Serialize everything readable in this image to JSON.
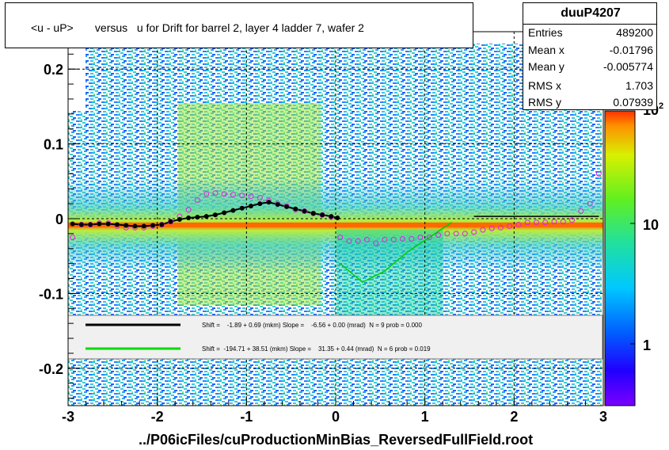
{
  "chart_data": {
    "type": "heatmap",
    "title": "<u - uP>       versus   u for Drift for barrel 2, layer 4 ladder 7, wafer 2",
    "xlabel": "../P06icFiles/cuProductionMinBias_ReversedFullField.root",
    "xlim": [
      -3,
      3
    ],
    "ylim": [
      -0.25,
      0.25
    ],
    "x_ticks": [
      "-3",
      "-2",
      "-1",
      "0",
      "1",
      "2",
      "3"
    ],
    "y_ticks": [
      "-0.2",
      "-0.1",
      "0",
      "0.1",
      "0.2"
    ],
    "z_ticks": [
      "1",
      "10",
      "10"
    ],
    "z_exponent": "2",
    "stats": {
      "name": "duuP4207",
      "rows": [
        {
          "label": "Entries",
          "value": "489200"
        },
        {
          "label": "Mean x",
          "value": "-0.01796"
        },
        {
          "label": "Mean y",
          "value": "-0.005774"
        },
        {
          "label": "RMS x",
          "value": "1.703"
        },
        {
          "label": "RMS y",
          "value": "0.07939"
        }
      ]
    },
    "legend": [
      {
        "color": "#000000",
        "text": "Shift =    -1.89 + 0.69 (mkm) Slope =    -6.56 + 0.00 (mrad)  N = 9 prob = 0.000"
      },
      {
        "color": "#00dd00",
        "text": "Shift =  -194.71 + 38.51 (mkm) Slope =    31.35 + 0.44 (mrad)  N = 6 prob = 0.019"
      }
    ],
    "profile_black": {
      "x": [
        -2.95,
        -2.85,
        -2.75,
        -2.65,
        -2.55,
        -2.45,
        -2.35,
        -2.25,
        -2.15,
        -2.05,
        -1.95,
        -1.85,
        -1.75,
        -1.65,
        -1.55,
        -1.45,
        -1.35,
        -1.25,
        -1.15,
        -1.05,
        -0.95,
        -0.85,
        -0.75,
        -0.65,
        -0.55,
        -0.45,
        -0.35,
        -0.25,
        -0.15,
        -0.05,
        0.02
      ],
      "y": [
        -0.007,
        -0.008,
        -0.008,
        -0.007,
        -0.007,
        -0.008,
        -0.009,
        -0.01,
        -0.01,
        -0.009,
        -0.008,
        -0.004,
        -0.001,
        0.001,
        0.002,
        0.003,
        0.005,
        0.008,
        0.011,
        0.014,
        0.017,
        0.02,
        0.022,
        0.019,
        0.016,
        0.013,
        0.01,
        0.007,
        0.005,
        0.003,
        0.001
      ]
    },
    "profile_magenta": {
      "x": [
        -2.95,
        -2.85,
        -2.75,
        -2.65,
        -2.55,
        -2.45,
        -2.35,
        -2.25,
        -2.15,
        -2.05,
        -1.95,
        -1.85,
        -1.75,
        -1.65,
        -1.55,
        -1.45,
        -1.35,
        -1.25,
        -1.15,
        -1.05,
        -0.95,
        -0.85,
        -0.75,
        -0.65,
        -0.55,
        -0.45,
        -0.35,
        -0.25,
        -0.15,
        -0.05,
        0.05,
        0.15,
        0.25,
        0.35,
        0.45,
        0.55,
        0.65,
        0.75,
        0.85,
        0.95,
        1.05,
        1.15,
        1.25,
        1.35,
        1.45,
        1.55,
        1.65,
        1.75,
        1.85,
        1.95,
        2.05,
        2.15,
        2.25,
        2.35,
        2.45,
        2.55,
        2.65,
        2.75,
        2.85,
        2.95
      ],
      "y": [
        -0.025,
        -0.008,
        -0.008,
        -0.006,
        -0.006,
        -0.01,
        -0.012,
        -0.012,
        -0.012,
        -0.01,
        -0.008,
        -0.004,
        0.003,
        0.012,
        0.025,
        0.033,
        0.034,
        0.033,
        0.032,
        0.031,
        0.03,
        0.028,
        0.024,
        0.02,
        0.017,
        0.012,
        0.01,
        0.007,
        0.005,
        0.002,
        -0.025,
        -0.03,
        -0.03,
        -0.028,
        -0.033,
        -0.028,
        -0.028,
        -0.027,
        -0.027,
        -0.025,
        -0.025,
        -0.022,
        -0.02,
        -0.02,
        -0.02,
        -0.018,
        -0.015,
        -0.013,
        -0.012,
        -0.01,
        -0.008,
        -0.005,
        -0.005,
        -0.005,
        -0.004,
        -0.004,
        -0.002,
        0.01,
        0.02,
        0.06
      ]
    },
    "fit_black": {
      "x": [
        1.55,
        2.95
      ],
      "y": [
        0.003,
        0.003
      ]
    },
    "fit_green": {
      "x": [
        0.05,
        0.3,
        0.55,
        0.8,
        1.05,
        1.3
      ],
      "y": [
        -0.06,
        -0.085,
        -0.07,
        -0.045,
        -0.025,
        -0.005
      ]
    }
  }
}
